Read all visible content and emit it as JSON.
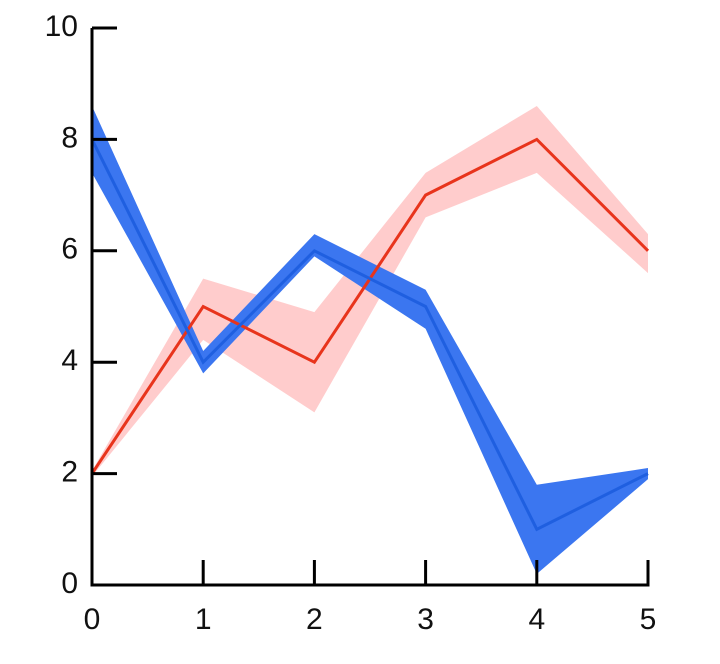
{
  "chart_data": {
    "type": "line",
    "x": [
      0,
      1,
      2,
      3,
      4,
      5
    ],
    "series": [
      {
        "color": "#e8341c",
        "band_color": "#ffcccc",
        "values": [
          2,
          5,
          4,
          7,
          8,
          6
        ],
        "lower": [
          1.95,
          4.4,
          3.1,
          6.6,
          7.4,
          5.6
        ],
        "upper": [
          2.05,
          5.5,
          4.9,
          7.4,
          8.6,
          6.3
        ]
      },
      {
        "color": "#1f5fe0",
        "band_color": "#3b76f0",
        "values": [
          8,
          4,
          6,
          5,
          1,
          2
        ],
        "lower": [
          7.4,
          3.8,
          5.9,
          4.6,
          0.2,
          1.9
        ],
        "upper": [
          8.6,
          4.2,
          6.3,
          5.3,
          1.8,
          2.1
        ]
      }
    ],
    "xlim": [
      0,
      5
    ],
    "ylim": [
      0,
      10
    ],
    "xticks": [
      0,
      1,
      2,
      3,
      4,
      5
    ],
    "yticks": [
      0,
      2,
      4,
      6,
      8,
      10
    ]
  }
}
